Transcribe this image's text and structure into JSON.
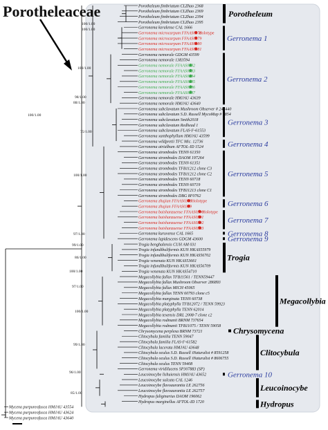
{
  "family_title": "Porotheleaceae",
  "bootstrap_labels": [
    "100/1.00",
    "100/1.00",
    "100/1.00",
    "98/1.00",
    "88/1.00",
    "100/1.00",
    "75/1.00",
    "100/1.00",
    "97/1.00",
    "99/1.00",
    "86/1.00",
    "100/1.00",
    "97/1.00",
    "100/1.00",
    "99/1.00",
    "96/1.00",
    "85/1.00"
  ],
  "clades": [
    {
      "name": "Porotheleum",
      "color": "#000000",
      "bold": true
    },
    {
      "name": "Gerronema 1",
      "color": "#2a3b9e",
      "bold": false
    },
    {
      "name": "Gerronema 2",
      "color": "#2a3b9e",
      "bold": false
    },
    {
      "name": "Gerronema 3",
      "color": "#2a3b9e",
      "bold": false
    },
    {
      "name": "Gerronema 4",
      "color": "#2a3b9e",
      "bold": false
    },
    {
      "name": "Gerronema 5",
      "color": "#2a3b9e",
      "bold": false
    },
    {
      "name": "Gerronema 6",
      "color": "#2a3b9e",
      "bold": false
    },
    {
      "name": "Gerronema 7",
      "color": "#2a3b9e",
      "bold": false
    },
    {
      "name": "Gerronema 8",
      "color": "#2a3b9e",
      "bold": false
    },
    {
      "name": "Gerronema 9",
      "color": "#2a3b9e",
      "bold": false
    },
    {
      "name": "Trogia",
      "color": "#000000",
      "bold": true
    },
    {
      "name": "Megacollybia",
      "color": "#000000",
      "bold": true
    },
    {
      "name": "Chrysomycena",
      "color": "#000000",
      "bold": true
    },
    {
      "name": "Clitocybula",
      "color": "#000000",
      "bold": true
    },
    {
      "name": "Gerronema 10",
      "color": "#2a3b9e",
      "bold": false
    },
    {
      "name": "Leucoinocybe",
      "color": "#000000",
      "bold": true
    },
    {
      "name": "Hydropus",
      "color": "#000000",
      "bold": true
    }
  ],
  "holotype_label": "Holotype",
  "taxa": [
    {
      "text": "Porotheleum fimbriatum CLZhao 2368",
      "color": "black"
    },
    {
      "text": "Porotheleum fimbriatum CLZhao 2369",
      "color": "black"
    },
    {
      "text": "Porotheleum fimbriatum CLZhao 2394",
      "color": "black"
    },
    {
      "text": "Porotheleum fimbriatum CLZhao 2395",
      "color": "black"
    },
    {
      "text": "Gerronema keralense CAL 1666",
      "color": "black"
    },
    {
      "text": "Gerronema microcarpum FFAAS0378",
      "color": "red",
      "holotype": true
    },
    {
      "text": "Gerronema microcarpum FFAAS0379",
      "color": "red"
    },
    {
      "text": "Gerronema microcarpum FFAAS0380",
      "color": "red"
    },
    {
      "text": "Gerronema microcarpum FFAAS0381",
      "color": "red"
    },
    {
      "text": "Gerronema nemorale GDGM 43599",
      "color": "black"
    },
    {
      "text": "Gerronema nemorale 1383594",
      "color": "black"
    },
    {
      "text": "Gerronema nemorale FFAAS0382",
      "color": "green"
    },
    {
      "text": "Gerronema nemorale FFAAS0383",
      "color": "green"
    },
    {
      "text": "Gerronema nemorale FFAAS0384",
      "color": "green"
    },
    {
      "text": "Gerronema nemorale FFAAS0385",
      "color": "green"
    },
    {
      "text": "Gerronema nemorale FFAAS0386",
      "color": "green"
    },
    {
      "text": "Gerronema nemorale FFAAS0387",
      "color": "green"
    },
    {
      "text": "Gerronema nemorale HMJAU 43639",
      "color": "black"
    },
    {
      "text": "Gerronema nemorale HMJAU 43640",
      "color": "black"
    },
    {
      "text": "Gerronema subclavatum Mushroom Observer # 243440",
      "color": "black"
    },
    {
      "text": "Gerronema subclavatum S.D. Russell MycoMap # 6854",
      "color": "black"
    },
    {
      "text": "Gerronema subclavatum Smith2018",
      "color": "black"
    },
    {
      "text": "Gerronema subclavatum Redhead 1",
      "color": "black"
    },
    {
      "text": "Gerronema subclavatum FLAS-F-61553",
      "color": "black"
    },
    {
      "text": "Gerronema xanthophyllum HMJAU 43599",
      "color": "black"
    },
    {
      "text": "Gerronema wildpretii TFC Mic. 12736",
      "color": "black"
    },
    {
      "text": "Gerronema atrialbum AFTOL-ID 1524",
      "color": "black"
    },
    {
      "text": "Gerronema strombodes TENN 61350",
      "color": "black"
    },
    {
      "text": "Gerronema strombodes DAOM 197264",
      "color": "black"
    },
    {
      "text": "Gerronema strombodes TENN 61351",
      "color": "black"
    },
    {
      "text": "Gerronema strombodes TFB11212 clone C3",
      "color": "black"
    },
    {
      "text": "Gerronema strombodes TFB11212 clone C2",
      "color": "black"
    },
    {
      "text": "Gerronema strombodes TENN 60718",
      "color": "black"
    },
    {
      "text": "Gerronema strombodes TENN 60719",
      "color": "black"
    },
    {
      "text": "Gerronema strombodes TFB11213 clone C1",
      "color": "black"
    },
    {
      "text": "Gerronema strombodes DBG 8F0762",
      "color": "black"
    },
    {
      "text": "Gerronema zhujian FFAAS0388",
      "color": "red",
      "holotype": true
    },
    {
      "text": "Gerronema zhujian FFAAS0389",
      "color": "red"
    },
    {
      "text": "Gerronema baishanzuense FFAAS0390",
      "color": "red",
      "holotype": true
    },
    {
      "text": "Gerronema baishanzuense FFAAS0391",
      "color": "red"
    },
    {
      "text": "Gerronema baishanzuense FFAAS0392",
      "color": "red"
    },
    {
      "text": "Gerronema baishanzuense FFAAS0393",
      "color": "red"
    },
    {
      "text": "Gerronema kuruvense CAL 1665",
      "color": "black"
    },
    {
      "text": "Gerronema lapidescens GDGM 43600",
      "color": "black"
    },
    {
      "text": "Trogia benghalensis CUH AM 031",
      "color": "black"
    },
    {
      "text": "Trogia infundibuliformis KUN HKAS55979",
      "color": "black"
    },
    {
      "text": "Trogia infundibuliformis KUN HKAS56702",
      "color": "black"
    },
    {
      "text": "Trogia venenata KUN HKAS53661",
      "color": "black"
    },
    {
      "text": "Trogia infundibuliformis KUN HKAS56709",
      "color": "black"
    },
    {
      "text": "Trogia venenata KUN HKAS54710",
      "color": "black"
    },
    {
      "text": "Megacollybia fallax TFB11561 / TENN59447",
      "color": "black"
    },
    {
      "text": "Megacollybia fallax Mushroom Observer 286893",
      "color": "black"
    },
    {
      "text": "Megacollybia fallax MICH 45065",
      "color": "black"
    },
    {
      "text": "Megacollybia fallax TENN 60793 clone c5",
      "color": "black"
    },
    {
      "text": "Megacollybia marginata TENN 60738",
      "color": "black"
    },
    {
      "text": "Megacollybia platyphylla TFB12072 / TENN 59923",
      "color": "black"
    },
    {
      "text": "Megacollybia platyphylla TENN 62014",
      "color": "black"
    },
    {
      "text": "Megacollybia texensis DRL 2008-7 clone c2",
      "color": "black"
    },
    {
      "text": "Megacollybia rodmanii BRNM 737654",
      "color": "black"
    },
    {
      "text": "Megacollybia rodmanii TFB11075 / TENN 59058",
      "color": "black"
    },
    {
      "text": "Chrysomycena perplexa BRNM 73721",
      "color": "black"
    },
    {
      "text": "Clitocybula familia TENN 59047",
      "color": "black"
    },
    {
      "text": "Clitocybula familia FLAS-F-61582",
      "color": "black"
    },
    {
      "text": "Clitocybula lacerata HMJAU 43648",
      "color": "black"
    },
    {
      "text": "Clitocybula oculus S.D. Russell iNaturalist # 8591258",
      "color": "black"
    },
    {
      "text": "Clitocybula oculus S.D. Russell iNaturalist # 8606755",
      "color": "black"
    },
    {
      "text": "Clitocybula oculus TENN 59408",
      "color": "black"
    },
    {
      "text": "Gerronema viridilucens SP307883 (SP)",
      "color": "black"
    },
    {
      "text": "Leucoinocybe lishuiensis HMJAU 43652",
      "color": "black"
    },
    {
      "text": "Leucoinocybe sulcata CAL 1246",
      "color": "black"
    },
    {
      "text": "Leucoinocybe flavoaurantia LE 262756",
      "color": "black"
    },
    {
      "text": "Leucoinocybe flavoaurantia LE 262757",
      "color": "black"
    },
    {
      "text": "Hydropus fuliginarius DAOM 196062",
      "color": "black"
    },
    {
      "text": "Hydropus marginellus AFTOL-ID 1720",
      "color": "black"
    },
    {
      "text": "Mycena purpureofusca HMJAU 43554",
      "color": "black"
    },
    {
      "text": "Mycena purpureofusca HMJAU 43624",
      "color": "black"
    },
    {
      "text": "Mycena purpureofusca HMJAU 43640",
      "color": "black"
    }
  ]
}
